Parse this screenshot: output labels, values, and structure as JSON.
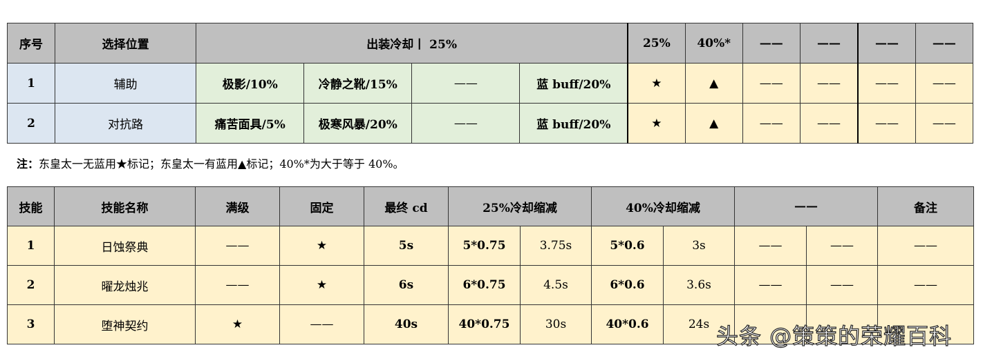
{
  "table1": {
    "header": [
      "序号",
      "选择位置",
      "出装冷却丨 25%",
      "25%",
      "40%*",
      "——",
      "——",
      "——",
      "——"
    ],
    "rows": [
      {
        "no": "1",
        "pos": "辅助",
        "items": [
          "极影/10%",
          "冷静之靴/15%",
          "——",
          "蓝 buff/20%"
        ],
        "c25": "★",
        "c40": "▲",
        "rest": [
          "——",
          "——",
          "——",
          "——"
        ]
      },
      {
        "no": "2",
        "pos": "对抗路",
        "items": [
          "痛苦面具/5%",
          "极寒风暴/20%",
          "——",
          "蓝 buff/20%"
        ],
        "c25": "★",
        "c40": "▲",
        "rest": [
          "——",
          "——",
          "——",
          "——"
        ]
      }
    ]
  },
  "note": {
    "label": "注：",
    "text": "东皇太一无蓝用★标记；东皇太一有蓝用▲标记；40%*为大于等于 40%。"
  },
  "table2": {
    "header": [
      "技能",
      "技能名称",
      "满级",
      "固定",
      "最终 cd",
      "25%冷却缩减",
      "40%冷却缩减",
      "——",
      "备注"
    ],
    "rows": [
      {
        "no": "1",
        "name": "日蚀祭典",
        "max": "——",
        "fixed": "★",
        "cd": "5s",
        "f25": "5*0.75",
        "v25": "3.75s",
        "f40": "5*0.6",
        "v40": "3s",
        "d1": "——",
        "d2": "——",
        "note": "——"
      },
      {
        "no": "2",
        "name": "曜龙烛兆",
        "max": "——",
        "fixed": "★",
        "cd": "6s",
        "f25": "6*0.75",
        "v25": "4.5s",
        "f40": "6*0.6",
        "v40": "3.6s",
        "d1": "——",
        "d2": "——",
        "note": "——"
      },
      {
        "no": "3",
        "name": "堕神契约",
        "max": "★",
        "fixed": "——",
        "cd": "40s",
        "f25": "40*0.75",
        "v25": "30s",
        "f40": "40*0.6",
        "v40": "24s",
        "d1": "",
        "d2": "",
        "note": ""
      }
    ]
  },
  "watermark": "头条 @策策的荣耀百科"
}
